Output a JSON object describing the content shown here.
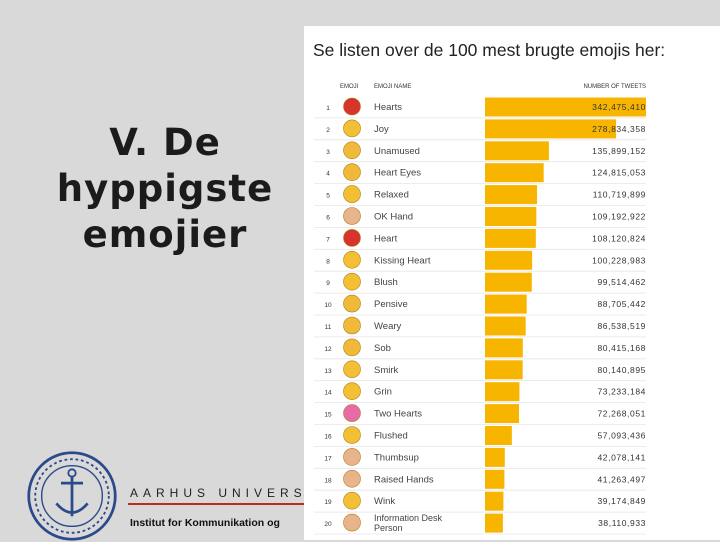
{
  "slide": {
    "title": "V. De\nhyppigste\nemojier",
    "university": "AARHUS UNIVERSIT",
    "institute": "Institut for Kommunikation og",
    "seal_text": "SOLIDUM PETIT IN PROFUNDIS · UNIVERSITAS AARHUSIENSIS"
  },
  "panel": {
    "heading": "Se listen over de 100 mest brugte emojis her:"
  },
  "colors": {
    "bar": "#f7b500",
    "background": "#d9d9d9",
    "accent_line": "#b5301b"
  },
  "chart_data": {
    "type": "bar",
    "orientation": "horizontal",
    "columns": [
      "EMOJI",
      "EMOJI NAME",
      "NUMBER OF TWEETS"
    ],
    "ranks": [
      1,
      2,
      3,
      4,
      5,
      6,
      7,
      8,
      9,
      10,
      11,
      12,
      13,
      14,
      15,
      16,
      17,
      18,
      19,
      20
    ],
    "categories": [
      "Hearts",
      "Joy",
      "Unamused",
      "Heart Eyes",
      "Relaxed",
      "OK Hand",
      "Heart",
      "Kissing Heart",
      "Blush",
      "Pensive",
      "Weary",
      "Sob",
      "Smirk",
      "Grin",
      "Two Hearts",
      "Flushed",
      "Thumbsup",
      "Raised Hands",
      "Wink",
      "Information Desk Person"
    ],
    "values": [
      342475410,
      278834358,
      135899152,
      124815053,
      110719899,
      109192922,
      108120824,
      100228983,
      99514462,
      88705442,
      86538519,
      80415168,
      80140895,
      73233184,
      72268051,
      57093436,
      42078141,
      41263497,
      39174849,
      38110933
    ],
    "value_labels": [
      "342,475,410",
      "278,834,358",
      "135,899,152",
      "124,815,053",
      "110,719,899",
      "109,192,922",
      "108,120,824",
      "100,228,983",
      "99,514,462",
      "88,705,442",
      "86,538,519",
      "80,415,168",
      "80,140,895",
      "73,233,184",
      "72,268,051",
      "57,093,436",
      "42,078,141",
      "41,263,497",
      "39,174,849",
      "38,110,933"
    ],
    "emoji_icons": [
      "red-heart-face-icon",
      "tears-of-joy-icon",
      "unamused-face-icon",
      "heart-eyes-icon",
      "relaxed-face-icon",
      "ok-hand-icon",
      "red-heart-icon",
      "kissing-heart-icon",
      "blush-face-icon",
      "pensive-face-icon",
      "weary-face-icon",
      "sob-face-icon",
      "smirk-face-icon",
      "grin-face-icon",
      "two-hearts-icon",
      "flushed-face-icon",
      "thumbsup-icon",
      "raised-hands-icon",
      "wink-face-icon",
      "information-desk-person-icon"
    ],
    "xlim": [
      0,
      342475410
    ]
  }
}
